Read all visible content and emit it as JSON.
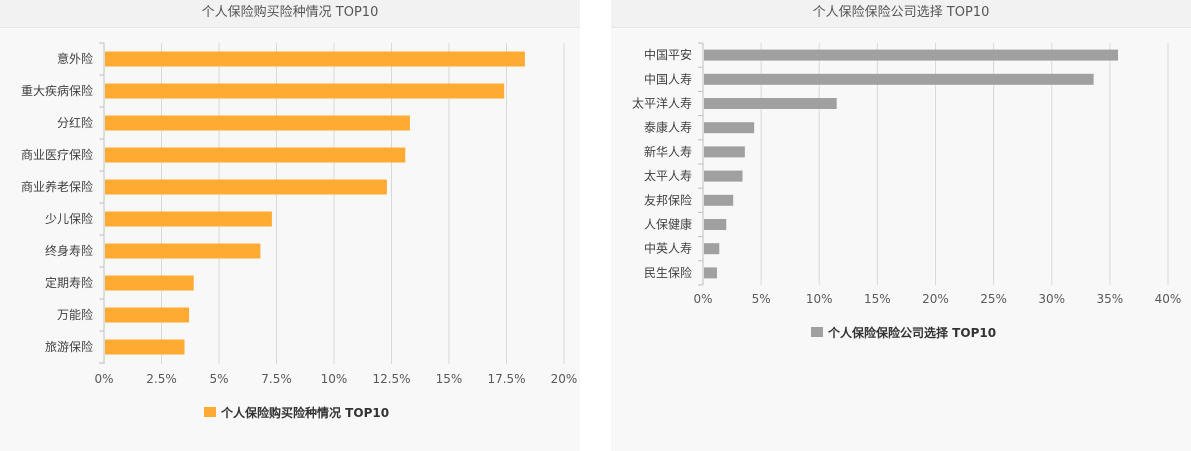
{
  "chart_data": [
    {
      "type": "bar",
      "orientation": "horizontal",
      "title": "个人保险购买险种情况 TOP10",
      "categories": [
        "意外险",
        "重大疾病保险",
        "分红险",
        "商业医疗保险",
        "商业养老保险",
        "少儿保险",
        "终身寿险",
        "定期寿险",
        "万能险",
        "旅游保险"
      ],
      "series": [
        {
          "name": "个人保险购买险种情况 TOP10",
          "values": [
            18.3,
            17.4,
            13.3,
            13.1,
            12.3,
            7.3,
            6.8,
            3.9,
            3.7,
            3.5
          ],
          "color": "#FFAA33"
        }
      ],
      "xlim": [
        0,
        20
      ],
      "xticks": [
        "0%",
        "2.5%",
        "5%",
        "7.5%",
        "10%",
        "12.5%",
        "15%",
        "17.5%",
        "20%"
      ],
      "xtick_values": [
        0,
        2.5,
        5,
        7.5,
        10,
        12.5,
        15,
        17.5,
        20
      ],
      "grid": "vertical",
      "legend_position": "bottom"
    },
    {
      "type": "bar",
      "orientation": "horizontal",
      "title": "个人保险保险公司选择 TOP10",
      "categories": [
        "中国平安",
        "中国人寿",
        "太平洋人寿",
        "泰康人寿",
        "新华人寿",
        "太平人寿",
        "友邦保险",
        "人保健康",
        "中英人寿",
        "民生保险"
      ],
      "series": [
        {
          "name": "个人保险保险公司选择 TOP10",
          "values": [
            35.7,
            33.6,
            11.5,
            4.4,
            3.6,
            3.4,
            2.6,
            2.0,
            1.4,
            1.2
          ],
          "color": "#A0A0A0"
        }
      ],
      "xlim": [
        0,
        40
      ],
      "xticks": [
        "0%",
        "5%",
        "10%",
        "15%",
        "20%",
        "25%",
        "30%",
        "35%",
        "40%"
      ],
      "xtick_values": [
        0,
        5,
        10,
        15,
        20,
        25,
        30,
        35,
        40
      ],
      "grid": "vertical",
      "legend_position": "bottom"
    }
  ]
}
